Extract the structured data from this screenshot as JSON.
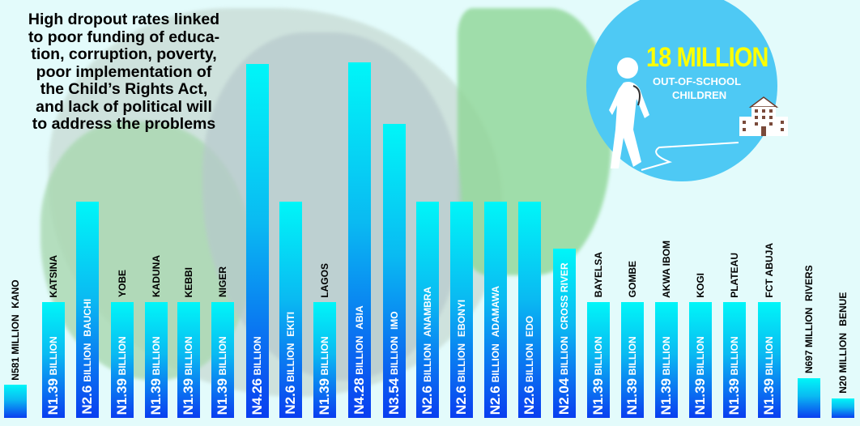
{
  "headline": [
    "High dropout rates linked",
    "to poor funding of educa-",
    "tion, corruption, poverty,",
    "poor implementation of",
    "the Child’s Rights Act,",
    "and lack of political will",
    "to address the problems"
  ],
  "callout": {
    "number": "18 MILLION",
    "line1": "OUT-OF-SCHOOL",
    "line2": "CHILDREN",
    "color": "#4ec9f4",
    "number_color": "#ffff00"
  },
  "chart_data": {
    "type": "bar",
    "title": "",
    "unit_note": "Naira",
    "categories": [
      "KANO",
      "KATSINA",
      "BAUCHI",
      "YOBE",
      "KADUNA",
      "KEBBI",
      "NIGER",
      "",
      "EKITI",
      "LAGOS",
      "ABIA",
      "IMO",
      "ANAMBRA",
      "EBONYI",
      "ADAMAWA",
      "EDO",
      "CROSS RIVER",
      "BAYELSA",
      "GOMBE",
      "AKWA IBOM",
      "KOGI",
      "PLATEAU",
      "FCT ABUJA",
      "RIVERS",
      "BENUE"
    ],
    "values_billion": [
      0.581,
      1.39,
      2.6,
      1.39,
      1.39,
      1.39,
      1.39,
      4.26,
      2.6,
      1.39,
      4.28,
      3.54,
      2.6,
      2.6,
      2.6,
      2.6,
      2.04,
      1.39,
      1.39,
      1.39,
      1.39,
      1.39,
      1.39,
      0.697,
      0.02
    ],
    "amount_labels": [
      "N581",
      "N1.39",
      "N2.6",
      "N1.39",
      "N1.39",
      "N1.39",
      "N1.39",
      "N4.26",
      "N2.6",
      "N1.39",
      "N4.28",
      "N3.54",
      "N2.6",
      "N2.6",
      "N2.6",
      "N2.6",
      "N2.04",
      "N1.39",
      "N1.39",
      "N1.39",
      "N1.39",
      "N1.39",
      "N1.39",
      "N697",
      "N20"
    ],
    "unit_labels": [
      "MILLION",
      "BILLION",
      "BILLION",
      "BILLION",
      "BILLION",
      "BILLION",
      "BILLION",
      "BILLION",
      "BILLION",
      "BILLION",
      "BILLION",
      "BILLION",
      "BILLION",
      "BILLION",
      "BILLION",
      "BILLION",
      "BILLION",
      "BILLION",
      "BILLION",
      "BILLION",
      "BILLION",
      "BILLION",
      "BILLION",
      "MILLION",
      "MILLION"
    ],
    "colors": {
      "bar_top": "#00f6f8",
      "bar_bottom": "#0a3ef0"
    }
  }
}
